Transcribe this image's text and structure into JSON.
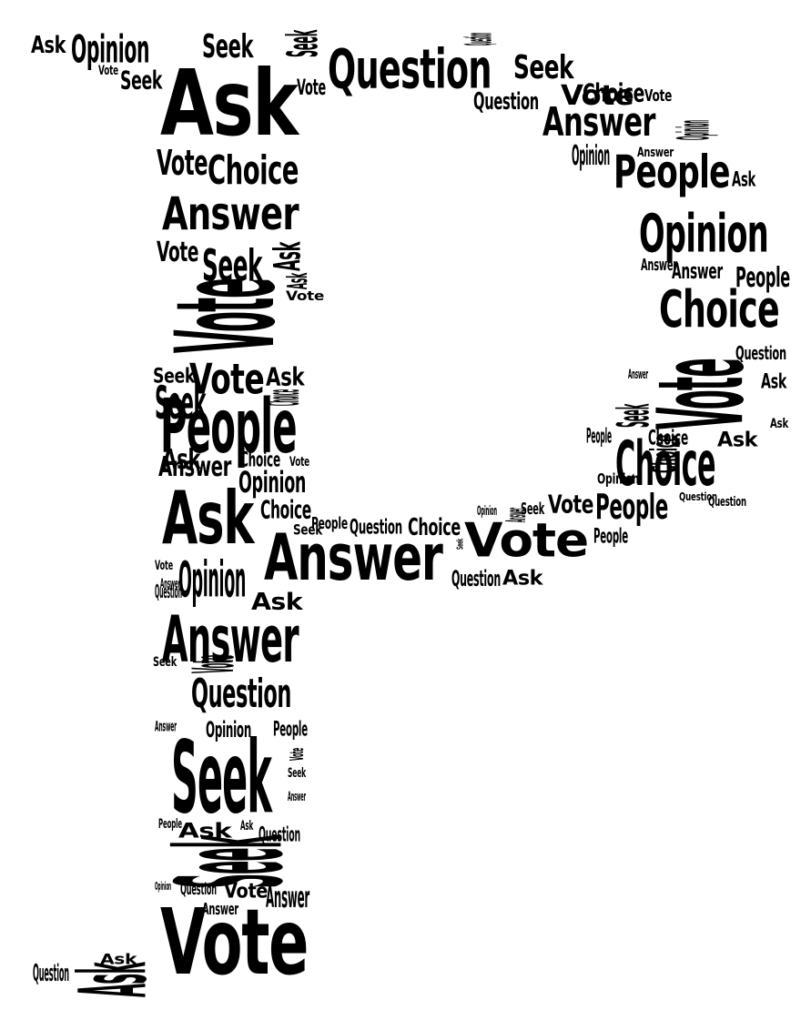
{
  "word_cloud": {
    "shape_letter": "P",
    "ink_color": "#000000",
    "background_color": "#ffffff",
    "vocabulary": [
      "Ask",
      "Seek",
      "Vote",
      "Answer",
      "Question",
      "Opinion",
      "People",
      "Choice"
    ],
    "words": [
      "Ask",
      "Opinion",
      "Seek",
      "Seek",
      "Question",
      "Vote",
      "Seek",
      "Ask",
      "Vote",
      "Question",
      "Seek",
      "Vote",
      "Question",
      "Answer",
      "Choice",
      "Vote",
      "Opinion",
      "Answer",
      "People",
      "Vote",
      "Choice",
      "Answer",
      "Ask",
      "Seek",
      "Opinion",
      "Ask",
      "Vote",
      "Ask",
      "Vote",
      "Opinion",
      "Answer",
      "Choice",
      "People",
      "Vote",
      "Seek",
      "Ask",
      "Vote",
      "Choice",
      "Seek",
      "Ask",
      "People",
      "Answer",
      "Choice",
      "Opinion",
      "Choice",
      "Ask",
      "Vote",
      "Vote",
      "Question",
      "Opinion",
      "Ask",
      "Answer",
      "Seek",
      "Choice",
      "Answer",
      "People",
      "Question",
      "Question",
      "Ask",
      "Ask",
      "Choice",
      "Choice",
      "Seek",
      "People",
      "Vote",
      "Opinion",
      "Answer",
      "People",
      "Vote",
      "Choice",
      "Question",
      "Seek",
      "People",
      "Answer",
      "Question",
      "Ask",
      "Seek",
      "Vote",
      "Answer",
      "Opinion",
      "Question",
      "Ask",
      "Answer",
      "Vote",
      "Question",
      "Seek",
      "Answer",
      "Seek",
      "Opinion",
      "People",
      "Vote",
      "Seek",
      "Answer",
      "People",
      "Ask",
      "Ask",
      "Question",
      "Seek",
      "Opinion",
      "Question",
      "Vote",
      "Answer",
      "Answer",
      "Vote",
      "Question",
      "Ask",
      "Ask"
    ]
  }
}
